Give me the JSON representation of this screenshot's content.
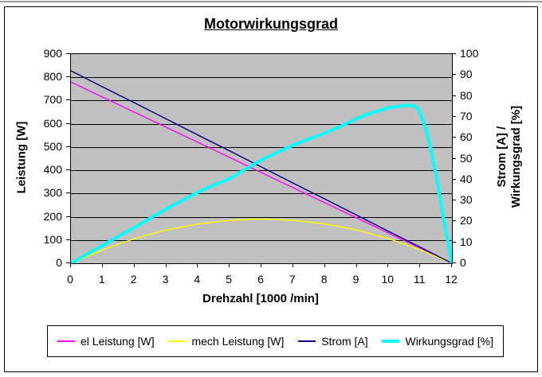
{
  "title": "Motorwirkungsgrad",
  "axes": {
    "left": {
      "title": "Leistung [W]",
      "tick_labels": [
        "900",
        "800",
        "700",
        "600",
        "500",
        "400",
        "300",
        "200",
        "100",
        "0"
      ]
    },
    "right": {
      "title_line1": "Strom [A] /",
      "title_line2": "Wirkungsgrad [%]",
      "tick_labels": [
        "100",
        "90",
        "80",
        "70",
        "60",
        "50",
        "40",
        "30",
        "20",
        "10",
        "0"
      ]
    },
    "x": {
      "title": "Drehzahl [1000 /min]",
      "tick_labels": [
        "0",
        "1",
        "2",
        "3",
        "4",
        "5",
        "6",
        "7",
        "8",
        "9",
        "10",
        "11",
        "12"
      ]
    }
  },
  "colors": {
    "plot_background": "#C0C0C0",
    "gridline": "#000000",
    "frame": "#000000",
    "el_leistung": "#FF00FF",
    "mech_leistung": "#FFFF00",
    "strom": "#000080",
    "wirkungsgrad": "#00FFFF"
  },
  "chart_data": {
    "type": "line",
    "title": "Motorwirkungsgrad",
    "xlabel": "Drehzahl [1000 /min]",
    "ylabel_left": "Leistung [W]",
    "ylabel_right": "Strom [A] / Wirkungsgrad [%]",
    "x_range": [
      0,
      12
    ],
    "y_left_range": [
      0,
      900
    ],
    "y_right_range": [
      0,
      100
    ],
    "grid": "horizontal",
    "legend_position": "bottom",
    "series": [
      {
        "name": "el Leistung [W]",
        "axis": "left",
        "color": "#FF00FF",
        "width": 1.4,
        "x": [
          0,
          1,
          2,
          3,
          4,
          5,
          6,
          7,
          8,
          9,
          10,
          11,
          12
        ],
        "y": [
          780,
          715,
          650,
          585,
          520,
          455,
          390,
          325,
          260,
          195,
          130,
          65,
          0
        ]
      },
      {
        "name": "mech Leistung [W]",
        "axis": "left",
        "color": "#FFFF00",
        "width": 1.4,
        "x": [
          0,
          1,
          2,
          3,
          4,
          5,
          6,
          7,
          8,
          9,
          10,
          11,
          12
        ],
        "y": [
          0,
          58,
          106,
          143,
          169,
          185,
          190,
          185,
          169,
          143,
          106,
          58,
          0
        ]
      },
      {
        "name": "Strom [A]",
        "axis": "right",
        "color": "#000080",
        "width": 1.4,
        "x": [
          0,
          1,
          2,
          3,
          4,
          5,
          6,
          7,
          8,
          9,
          10,
          11,
          12
        ],
        "y": [
          92,
          84.3,
          76.7,
          69,
          61.3,
          53.7,
          46,
          38.3,
          30.7,
          23,
          15.3,
          7.7,
          0
        ]
      },
      {
        "name": "Wirkungsgrad [%]",
        "axis": "right",
        "color": "#00FFFF",
        "width": 4,
        "x": [
          0,
          0.5,
          1,
          1.5,
          2,
          2.5,
          3,
          3.5,
          4,
          4.5,
          5,
          5.5,
          6,
          6.5,
          7,
          7.5,
          8,
          8.5,
          9,
          9.5,
          10,
          10.3,
          10.5,
          10.7,
          10.9,
          11.1,
          11.3,
          11.5,
          11.7,
          11.85,
          12
        ],
        "y": [
          0,
          4.3,
          8.6,
          13,
          17.1,
          21.6,
          26,
          30,
          34,
          37.4,
          40.5,
          45,
          49.5,
          53,
          56.5,
          59.5,
          62.3,
          65.5,
          69.2,
          72.1,
          74.3,
          75,
          75.4,
          75.5,
          74.5,
          68,
          57,
          42,
          24,
          12,
          0
        ]
      }
    ]
  }
}
